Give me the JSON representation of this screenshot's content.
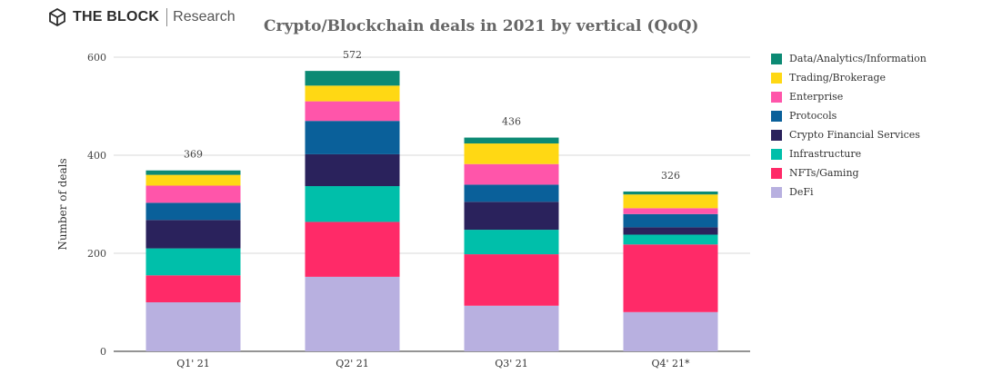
{
  "brand": {
    "logo_icon": "cube-icon",
    "name": "THE BLOCK",
    "subtitle": "Research"
  },
  "colors": {
    "DeFi": "#b8b0e0",
    "NFTs/Gaming": "#ff2a68",
    "Infrastructure": "#00bfaa",
    "Crypto Financial Services": "#2a225c",
    "Protocols": "#0a609a",
    "Enterprise": "#ff55aa",
    "Trading/Brokerage": "#ffd814",
    "Data/Analytics/Information": "#0c8a74"
  },
  "chart_data": {
    "type": "bar",
    "stacked": true,
    "title": "Crypto/Blockchain deals in 2021 by vertical (QoQ)",
    "xlabel": "",
    "ylabel": "Number of deals",
    "ylim": [
      0,
      600
    ],
    "yticks": [
      0,
      200,
      400,
      600
    ],
    "grid": true,
    "legend_position": "right",
    "categories": [
      "Q1' 21",
      "Q2' 21",
      "Q3' 21",
      "Q4' 21*"
    ],
    "totals": [
      369,
      572,
      436,
      326
    ],
    "series": [
      {
        "name": "DeFi",
        "values": [
          100,
          152,
          93,
          80
        ]
      },
      {
        "name": "NFTs/Gaming",
        "values": [
          55,
          112,
          105,
          138
        ]
      },
      {
        "name": "Infrastructure",
        "values": [
          55,
          73,
          50,
          20
        ]
      },
      {
        "name": "Crypto Financial Services",
        "values": [
          58,
          65,
          57,
          15
        ]
      },
      {
        "name": "Protocols",
        "values": [
          35,
          68,
          35,
          27
        ]
      },
      {
        "name": "Enterprise",
        "values": [
          35,
          40,
          42,
          12
        ]
      },
      {
        "name": "Trading/Brokerage",
        "values": [
          22,
          32,
          42,
          28
        ]
      },
      {
        "name": "Data/Analytics/Information",
        "values": [
          9,
          30,
          12,
          6
        ]
      }
    ]
  }
}
